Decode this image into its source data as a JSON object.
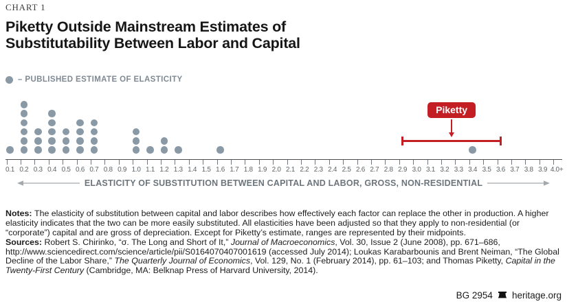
{
  "kicker": "CHART 1",
  "title": {
    "line1": "Piketty Outside Mainstream Estimates of",
    "line2": "Substitutability Between Labor and Capital"
  },
  "legend": {
    "label": "– PUBLISHED ESTIMATE OF ELASTICITY"
  },
  "colors": {
    "dot_color": "#8A99A6",
    "accent_red": "#C41E25",
    "legend_text": "#7E8993",
    "caption_text": "#6C757C",
    "tick_text": "#5E6468",
    "axis_line": "#4D4D4D",
    "arrow_line": "#A3A9AD"
  },
  "chart_data": {
    "type": "dot-plot",
    "title": "Piketty Outside Mainstream Estimates of Substitutability Between Labor and Capital",
    "legend_entry": "PUBLISHED ESTIMATE OF ELASTICITY",
    "xlabel": "ELASTICITY OF SUBSTITUTION BETWEEN CAPITAL AND LABOR, GROSS, NON-RESIDENTIAL",
    "x_ticks": [
      "0.1",
      "0.2",
      "0.3",
      "0.4",
      "0.5",
      "0.6",
      "0.7",
      "0.8",
      "0.9",
      "1.0",
      "1.1",
      "1.2",
      "1.3",
      "1.4",
      "1.5",
      "1.6",
      "1.7",
      "1.8",
      "1.9",
      "2.0",
      "2.1",
      "2.2",
      "2.3",
      "2.4",
      "2.5",
      "2.6",
      "2.7",
      "2.8",
      "2.9",
      "3.0",
      "3.1",
      "3.2",
      "3.3",
      "3.4",
      "3.5",
      "3.6",
      "3.7",
      "3.8",
      "3.9",
      "4.0+"
    ],
    "x_range": [
      0.1,
      4.0
    ],
    "grid": false,
    "points": [
      {
        "x": 0.1,
        "count": 1
      },
      {
        "x": 0.2,
        "count": 6
      },
      {
        "x": 0.3,
        "count": 3
      },
      {
        "x": 0.4,
        "count": 5
      },
      {
        "x": 0.5,
        "count": 3
      },
      {
        "x": 0.6,
        "count": 4
      },
      {
        "x": 0.7,
        "count": 4
      },
      {
        "x": 1.0,
        "count": 3
      },
      {
        "x": 1.1,
        "count": 1
      },
      {
        "x": 1.2,
        "count": 2
      },
      {
        "x": 1.3,
        "count": 1
      },
      {
        "x": 1.6,
        "count": 1
      },
      {
        "x": 3.4,
        "count": 1
      }
    ],
    "piketty_annotation": {
      "label": "Piketty",
      "range": [
        2.9,
        3.6
      ],
      "point": 3.4
    }
  },
  "notes": {
    "paragraphs": [
      [
        {
          "t": "Notes: ",
          "s": "b"
        },
        {
          "t": "The elasticity of substitution between capital and labor describes how effectively each factor can replace the other in production. A higher elasticity indicates that the two can be more easily substituted. All elasticities have been adjusted so that they apply to non-residential (or “corporate”) capital and are gross of depreciation. Except for Piketty’s estimate, ranges are represented by their midpoints.",
          "s": "n"
        }
      ],
      [
        {
          "t": "Sources: ",
          "s": "b"
        },
        {
          "t": "Robert S. Chirinko, “σ. The Long and Short of It,” ",
          "s": "n"
        },
        {
          "t": "Journal of Macroeconomics",
          "s": "i"
        },
        {
          "t": ", Vol. 30, Issue 2 (June 2008), pp. 671–686, http://www.sciencedirect.com/science/article/pii/S0164070407001619 (accessed July 2014); Loukas Karabarbounis and Brent Neiman, “The Global Decline of the Labor Share,” ",
          "s": "n"
        },
        {
          "t": "The Quarterly Journal of Economics",
          "s": "i"
        },
        {
          "t": ", Vol. 129, No. 1 (February 2014), pp. 61–103; and Thomas Piketty, ",
          "s": "n"
        },
        {
          "t": "Capital in the Twenty-First Century",
          "s": "i"
        },
        {
          "t": " (Cambridge, MA: Belknap Press of Harvard University, 2014).",
          "s": "n"
        }
      ]
    ]
  },
  "footer": {
    "doc_id": "BG 2954",
    "site": "heritage.org"
  }
}
